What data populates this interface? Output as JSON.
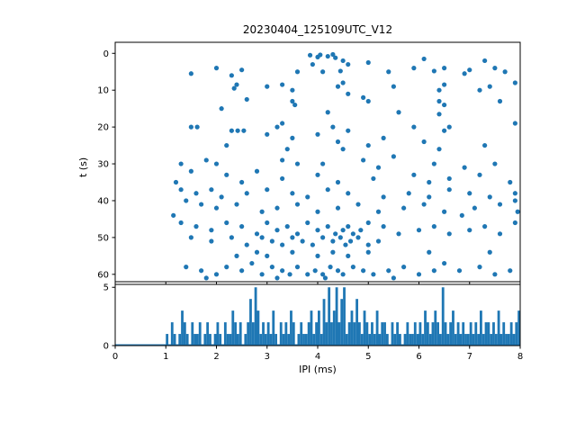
{
  "colors": {
    "accent": "#1f77b4",
    "axis": "#000000",
    "background": "#ffffff"
  },
  "chart_data": [
    {
      "type": "scatter",
      "title": "20230404_125109UTC_V12",
      "xlabel": "",
      "ylabel": "t (s)",
      "xlim": [
        0,
        8
      ],
      "ylim": [
        -3,
        62
      ],
      "y_inverted": true,
      "yticks": [
        0,
        10,
        20,
        30,
        40,
        50,
        60
      ],
      "xticks": [
        0,
        1,
        2,
        3,
        4,
        5,
        6,
        7,
        8
      ],
      "color": "#1f77b4",
      "points": [
        [
          3.85,
          0.5
        ],
        [
          4.0,
          1.0
        ],
        [
          4.2,
          0.8
        ],
        [
          4.35,
          1.2
        ],
        [
          4.5,
          2.0
        ],
        [
          3.9,
          3.0
        ],
        [
          4.6,
          3.0
        ],
        [
          5.0,
          2.5
        ],
        [
          5.9,
          4.0
        ],
        [
          6.1,
          1.5
        ],
        [
          6.5,
          4.0
        ],
        [
          7.0,
          4.5
        ],
        [
          7.3,
          2.0
        ],
        [
          5.4,
          5.0
        ],
        [
          4.1,
          5.0
        ],
        [
          3.6,
          5.0
        ],
        [
          2.5,
          4.5
        ],
        [
          1.5,
          5.5
        ],
        [
          2.0,
          4.0
        ],
        [
          2.3,
          6.0
        ],
        [
          6.9,
          5.5
        ],
        [
          7.5,
          4.0
        ],
        [
          7.7,
          5.0
        ],
        [
          4.3,
          0.3
        ],
        [
          4.05,
          0.4
        ],
        [
          4.45,
          4.8
        ],
        [
          6.3,
          4.8
        ],
        [
          3.0,
          9.0
        ],
        [
          3.3,
          8.5
        ],
        [
          3.5,
          10.0
        ],
        [
          4.4,
          9.0
        ],
        [
          4.5,
          8.0
        ],
        [
          2.4,
          8.5
        ],
        [
          2.35,
          9.5
        ],
        [
          5.5,
          9.0
        ],
        [
          6.4,
          10.0
        ],
        [
          6.5,
          8.5
        ],
        [
          7.2,
          10.0
        ],
        [
          7.4,
          9.0
        ],
        [
          7.9,
          8.0
        ],
        [
          4.9,
          12.0
        ],
        [
          5.0,
          13.0
        ],
        [
          3.5,
          13.0
        ],
        [
          3.55,
          14.0
        ],
        [
          6.4,
          13.0
        ],
        [
          6.5,
          14.0
        ],
        [
          7.6,
          13.0
        ],
        [
          2.1,
          15.0
        ],
        [
          4.2,
          16.0
        ],
        [
          5.6,
          16.0
        ],
        [
          6.4,
          16.5
        ],
        [
          4.6,
          11.0
        ],
        [
          2.6,
          12.5
        ],
        [
          1.5,
          20
        ],
        [
          1.62,
          20
        ],
        [
          2.3,
          21
        ],
        [
          2.42,
          21
        ],
        [
          2.54,
          21
        ],
        [
          3.2,
          20
        ],
        [
          3.3,
          19
        ],
        [
          4.3,
          20
        ],
        [
          4.6,
          21
        ],
        [
          5.9,
          20
        ],
        [
          6.6,
          20
        ],
        [
          6.5,
          21
        ],
        [
          7.9,
          19
        ],
        [
          3.0,
          22
        ],
        [
          3.5,
          23
        ],
        [
          4.4,
          24
        ],
        [
          5.3,
          23
        ],
        [
          6.1,
          24
        ],
        [
          2.2,
          25
        ],
        [
          3.4,
          26
        ],
        [
          4.5,
          26
        ],
        [
          5.0,
          25
        ],
        [
          6.4,
          26
        ],
        [
          7.3,
          25
        ],
        [
          4.0,
          22
        ],
        [
          1.3,
          30
        ],
        [
          1.8,
          29
        ],
        [
          2.0,
          30
        ],
        [
          3.3,
          29
        ],
        [
          3.6,
          30
        ],
        [
          4.1,
          30
        ],
        [
          4.9,
          29
        ],
        [
          5.2,
          31
        ],
        [
          6.3,
          30
        ],
        [
          7.5,
          30
        ],
        [
          1.5,
          32
        ],
        [
          2.2,
          33
        ],
        [
          2.8,
          32
        ],
        [
          3.3,
          34
        ],
        [
          4.0,
          33
        ],
        [
          4.4,
          35
        ],
        [
          5.1,
          34
        ],
        [
          5.9,
          33
        ],
        [
          6.2,
          35
        ],
        [
          6.6,
          34
        ],
        [
          7.2,
          33
        ],
        [
          7.8,
          35
        ],
        [
          1.2,
          35
        ],
        [
          2.5,
          35
        ],
        [
          5.5,
          28
        ],
        [
          6.9,
          31
        ],
        [
          1.3,
          37
        ],
        [
          1.6,
          38
        ],
        [
          1.9,
          37
        ],
        [
          2.1,
          39
        ],
        [
          2.6,
          38
        ],
        [
          3.0,
          37
        ],
        [
          3.5,
          38
        ],
        [
          3.8,
          39
        ],
        [
          4.2,
          37
        ],
        [
          4.6,
          38
        ],
        [
          5.3,
          39
        ],
        [
          5.8,
          38
        ],
        [
          6.2,
          39
        ],
        [
          6.6,
          37
        ],
        [
          7.0,
          38
        ],
        [
          7.4,
          39
        ],
        [
          7.9,
          38
        ],
        [
          1.4,
          40
        ],
        [
          1.7,
          41
        ],
        [
          2.0,
          42
        ],
        [
          2.4,
          41
        ],
        [
          2.9,
          43
        ],
        [
          3.2,
          42
        ],
        [
          3.6,
          41
        ],
        [
          4.0,
          43
        ],
        [
          4.4,
          42
        ],
        [
          4.8,
          41
        ],
        [
          5.2,
          43
        ],
        [
          5.7,
          42
        ],
        [
          6.1,
          41
        ],
        [
          6.5,
          43
        ],
        [
          7.1,
          42
        ],
        [
          7.6,
          41
        ],
        [
          7.95,
          43
        ],
        [
          7.9,
          40
        ],
        [
          1.15,
          44
        ],
        [
          6.85,
          44
        ],
        [
          1.3,
          46
        ],
        [
          1.6,
          47
        ],
        [
          1.9,
          48
        ],
        [
          2.2,
          46
        ],
        [
          2.5,
          47
        ],
        [
          2.8,
          49
        ],
        [
          3.0,
          46
        ],
        [
          3.2,
          48
        ],
        [
          3.4,
          47
        ],
        [
          3.6,
          49
        ],
        [
          3.8,
          46
        ],
        [
          4.0,
          48
        ],
        [
          4.2,
          47
        ],
        [
          4.35,
          49
        ],
        [
          4.5,
          48
        ],
        [
          4.6,
          47
        ],
        [
          4.7,
          49
        ],
        [
          4.85,
          48
        ],
        [
          5.0,
          46
        ],
        [
          5.3,
          47
        ],
        [
          5.6,
          49
        ],
        [
          6.0,
          48
        ],
        [
          6.3,
          47
        ],
        [
          6.6,
          49
        ],
        [
          7.0,
          48
        ],
        [
          7.3,
          47
        ],
        [
          7.6,
          49
        ],
        [
          7.9,
          46
        ],
        [
          2.9,
          50
        ],
        [
          3.1,
          51
        ],
        [
          3.3,
          52
        ],
        [
          3.5,
          50
        ],
        [
          3.7,
          51
        ],
        [
          3.9,
          52
        ],
        [
          4.1,
          50
        ],
        [
          4.3,
          51
        ],
        [
          4.45,
          50
        ],
        [
          4.55,
          52
        ],
        [
          4.65,
          51
        ],
        [
          4.8,
          50
        ],
        [
          5.0,
          52
        ],
        [
          5.2,
          51
        ],
        [
          2.6,
          52
        ],
        [
          2.3,
          50
        ],
        [
          1.9,
          51
        ],
        [
          1.5,
          50
        ],
        [
          1.4,
          58
        ],
        [
          1.7,
          59
        ],
        [
          2.0,
          60
        ],
        [
          2.2,
          58
        ],
        [
          2.5,
          59
        ],
        [
          2.7,
          57
        ],
        [
          2.9,
          60
        ],
        [
          3.1,
          58
        ],
        [
          3.3,
          59
        ],
        [
          3.45,
          60
        ],
        [
          3.6,
          58
        ],
        [
          3.8,
          60
        ],
        [
          3.95,
          59
        ],
        [
          4.1,
          60
        ],
        [
          4.25,
          58
        ],
        [
          4.4,
          59
        ],
        [
          4.5,
          60
        ],
        [
          4.7,
          58
        ],
        [
          4.9,
          59
        ],
        [
          5.1,
          60
        ],
        [
          5.4,
          59
        ],
        [
          5.7,
          58
        ],
        [
          6.0,
          60
        ],
        [
          6.3,
          59
        ],
        [
          6.5,
          57
        ],
        [
          7.2,
          58
        ],
        [
          7.5,
          60
        ],
        [
          7.8,
          59
        ],
        [
          3.0,
          55
        ],
        [
          3.5,
          54
        ],
        [
          4.0,
          55
        ],
        [
          4.3,
          54
        ],
        [
          4.6,
          55
        ],
        [
          5.0,
          54
        ],
        [
          2.8,
          54
        ],
        [
          2.4,
          55
        ],
        [
          6.2,
          54
        ],
        [
          7.4,
          54
        ],
        [
          1.8,
          61
        ],
        [
          3.2,
          61
        ],
        [
          4.15,
          61
        ],
        [
          5.5,
          61
        ],
        [
          6.8,
          59
        ]
      ]
    },
    {
      "type": "bar",
      "title": "",
      "xlabel": "IPI (ms)",
      "ylabel": "",
      "xlim": [
        0,
        8
      ],
      "ylim": [
        0,
        5.25
      ],
      "xticks": [
        0,
        1,
        2,
        3,
        4,
        5,
        6,
        7,
        8
      ],
      "yticks": [
        0,
        5
      ],
      "color": "#1f77b4",
      "bin_start": 0,
      "bin_width": 0.05,
      "counts": [
        0,
        0,
        0,
        0,
        0,
        0,
        0,
        0,
        0,
        0,
        0,
        0,
        0,
        0,
        0,
        0,
        0,
        0,
        0,
        0,
        1,
        0,
        2,
        1,
        0,
        1,
        3,
        2,
        1,
        0,
        2,
        1,
        1,
        2,
        0,
        1,
        2,
        1,
        0,
        1,
        2,
        1,
        0,
        2,
        1,
        1,
        3,
        2,
        1,
        2,
        0,
        1,
        2,
        4,
        2,
        5,
        3,
        1,
        2,
        1,
        2,
        1,
        3,
        1,
        0,
        2,
        1,
        2,
        1,
        3,
        2,
        0,
        1,
        2,
        1,
        1,
        2,
        3,
        1,
        2,
        3,
        1,
        4,
        2,
        5,
        2,
        3,
        5,
        2,
        4,
        5,
        1,
        2,
        3,
        2,
        4,
        2,
        1,
        3,
        2,
        1,
        2,
        1,
        3,
        1,
        2,
        2,
        1,
        0,
        2,
        1,
        2,
        1,
        0,
        1,
        2,
        1,
        1,
        2,
        1,
        2,
        1,
        3,
        2,
        1,
        2,
        3,
        2,
        1,
        5,
        2,
        1,
        2,
        3,
        1,
        2,
        1,
        2,
        1,
        1,
        2,
        1,
        2,
        1,
        3,
        1,
        2,
        2,
        1,
        2,
        1,
        3,
        1,
        2,
        1,
        1,
        2,
        1,
        2,
        3
      ]
    }
  ]
}
